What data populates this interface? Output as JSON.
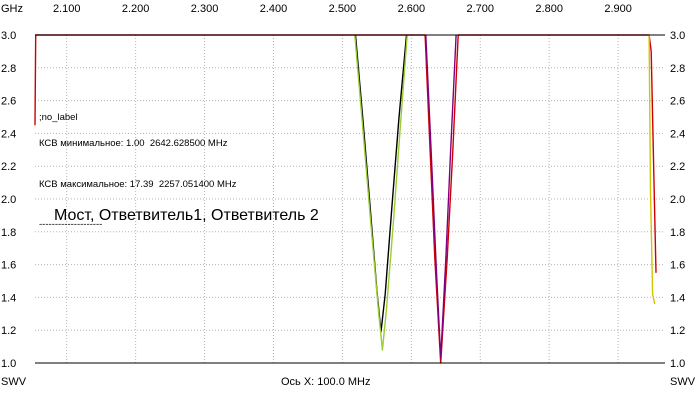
{
  "chart_data": {
    "type": "line",
    "x_unit_label": "GHz",
    "y_axis_label_left": "SWV",
    "y_axis_label_right": "SWV",
    "x_axis_caption": "Ось X: 100.0 MHz",
    "xlim": [
      2.054,
      2.968
    ],
    "ylim": [
      1.0,
      3.0
    ],
    "x_ticks": [
      2.1,
      2.2,
      2.3,
      2.4,
      2.5,
      2.6,
      2.7,
      2.8,
      2.9
    ],
    "x_tick_labels": [
      "2.100",
      "2.200",
      "2.300",
      "2.400",
      "2.500",
      "2.600",
      "2.700",
      "2.800",
      "2.900"
    ],
    "y_ticks": [
      1.0,
      1.2,
      1.4,
      1.6,
      1.8,
      2.0,
      2.2,
      2.4,
      2.6,
      2.8,
      3.0
    ],
    "y_tick_labels": [
      "1.0",
      "1.2",
      "1.4",
      "1.6",
      "1.8",
      "2.0",
      "2.2",
      "2.4",
      "2.6",
      "2.8",
      "3.0"
    ],
    "grid": true,
    "marker_label": ";no_label",
    "info_lines": [
      "КСВ минимальное: 1.00  2642.628500 MHz",
      "КСВ максимальное: 17.39  2257.051400 MHz",
      "--------------------"
    ],
    "annotation": "Мост, Ответвитель1, Ответвитель 2",
    "series": [
      {
        "color": "#000000",
        "x": [
          2.519,
          2.53,
          2.54,
          2.55,
          2.556,
          2.562,
          2.572,
          2.582,
          2.593
        ],
        "y": [
          3.0,
          2.47,
          1.96,
          1.44,
          1.19,
          1.42,
          1.96,
          2.49,
          3.0
        ]
      },
      {
        "color": "#9acd32",
        "x": [
          2.518,
          2.53,
          2.541,
          2.552,
          2.558,
          2.564,
          2.574,
          2.584,
          2.594
        ],
        "y": [
          3.0,
          2.41,
          1.86,
          1.33,
          1.08,
          1.33,
          1.86,
          2.44,
          3.0
        ]
      },
      {
        "color": "#cc0000",
        "x": [
          2.054,
          2.055,
          2.62,
          2.626,
          2.634,
          2.6426,
          2.652,
          2.66,
          2.668,
          2.945,
          2.948,
          2.952,
          2.955
        ],
        "y": [
          2.45,
          3.0,
          3.0,
          2.41,
          1.64,
          1.0,
          1.64,
          2.28,
          3.0,
          3.0,
          2.9,
          2.1,
          1.55
        ]
      },
      {
        "color": "#800080",
        "x": [
          2.621,
          2.629,
          2.636,
          2.6426,
          2.65,
          2.657,
          2.665
        ],
        "y": [
          3.0,
          2.27,
          1.59,
          1.03,
          1.63,
          2.29,
          3.0
        ]
      },
      {
        "color": "#d4c400",
        "x": [
          2.945,
          2.947,
          2.95,
          2.953
        ],
        "y": [
          3.0,
          2.05,
          1.42,
          1.36
        ]
      }
    ]
  }
}
